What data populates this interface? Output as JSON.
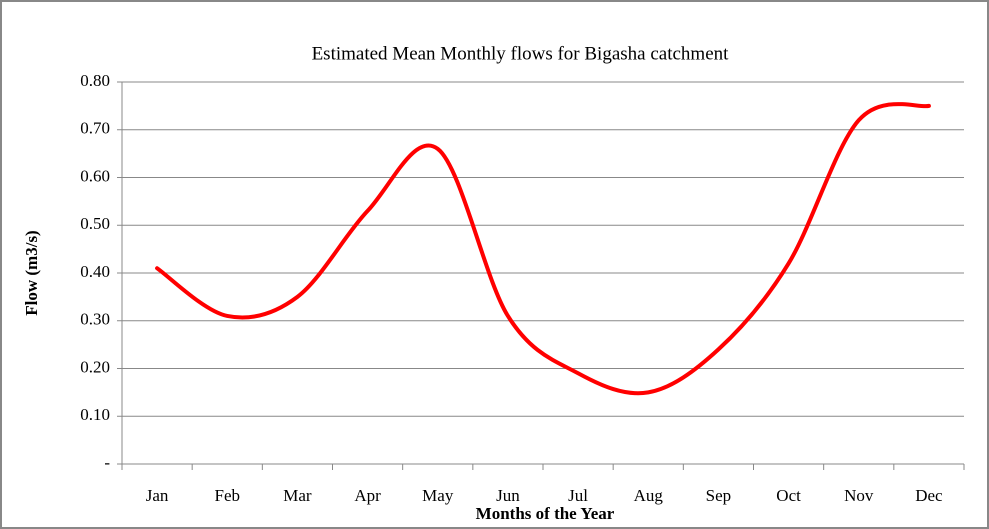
{
  "chart_data": {
    "type": "line",
    "title": "Estimated Mean Monthly flows for Bigasha catchment",
    "x_label": "Months of the Year",
    "y_label": "Flow (m3/s)",
    "categories": [
      "Jan",
      "Feb",
      "Mar",
      "Apr",
      "May",
      "Jun",
      "Jul",
      "Aug",
      "Sep",
      "Oct",
      "Nov",
      "Dec"
    ],
    "series": [
      {
        "name": "Flow",
        "color": "#ff0000",
        "values": [
          0.41,
          0.31,
          0.35,
          0.53,
          0.66,
          0.31,
          0.19,
          0.15,
          0.24,
          0.42,
          0.72,
          0.75
        ]
      }
    ],
    "ylim": [
      0,
      0.8
    ],
    "yticks": [
      {
        "value": 0,
        "label": "-"
      },
      {
        "value": 0.1,
        "label": "0.10"
      },
      {
        "value": 0.2,
        "label": "0.20"
      },
      {
        "value": 0.3,
        "label": "0.30"
      },
      {
        "value": 0.4,
        "label": "0.40"
      },
      {
        "value": 0.5,
        "label": "0.50"
      },
      {
        "value": 0.6,
        "label": "0.60"
      },
      {
        "value": 0.7,
        "label": "0.70"
      },
      {
        "value": 0.8,
        "label": "0.80"
      }
    ],
    "grid": true,
    "smooth": true
  }
}
